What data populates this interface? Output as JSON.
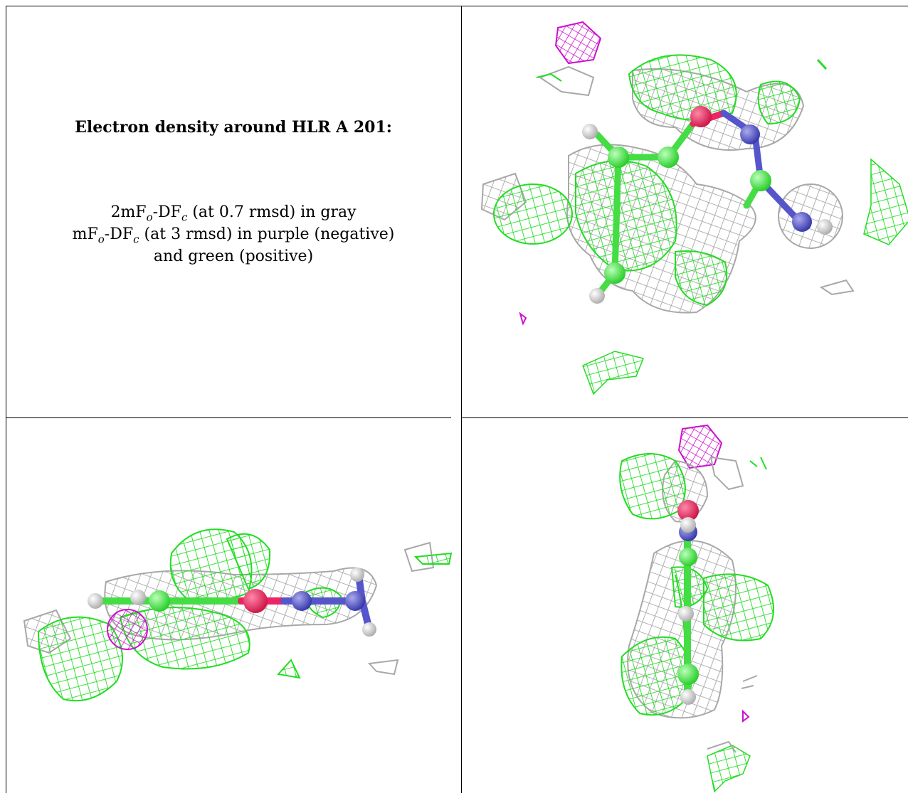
{
  "caption": {
    "title": "Electron density around HLR A 201:",
    "line1_prefix": "2mF",
    "line1_sub1": "o",
    "line1_mid": "-DF",
    "line1_sub2": "c",
    "line1_suffix": " (at 0.7 rmsd) in gray",
    "line2_prefix": "mF",
    "line2_sub1": "o",
    "line2_mid": "-DF",
    "line2_sub2": "c",
    "line2_suffix": " (at 3 rmsd) in purple (negative)",
    "line3": "and green (positive)"
  },
  "colors": {
    "gray_mesh": "#a8a8a8",
    "positive_mesh": "#22dd22",
    "negative_mesh": "#cc11cc",
    "carbon": "#44ee44",
    "nitrogen": "#5555cc",
    "oxygen": "#ee2266",
    "hydrogen": "#dddddd"
  },
  "panels": [
    {
      "name": "caption-panel"
    },
    {
      "name": "density-view-top-right"
    },
    {
      "name": "density-view-bottom-left"
    },
    {
      "name": "density-view-bottom-right"
    }
  ]
}
